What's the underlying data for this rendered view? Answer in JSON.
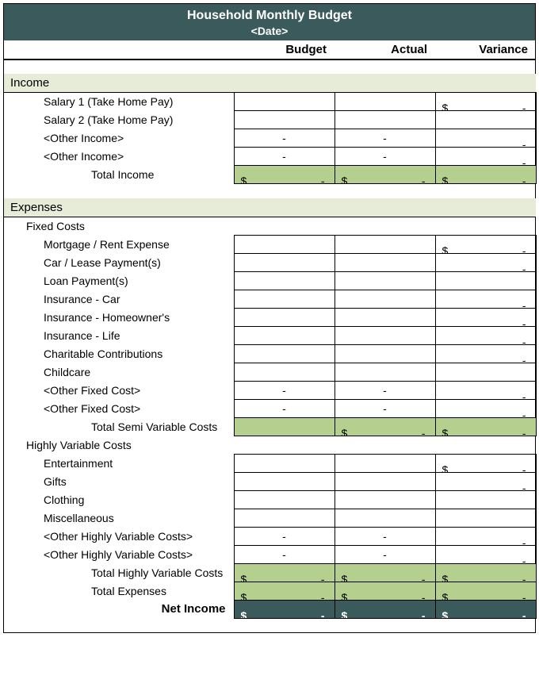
{
  "header": {
    "title": "Household Monthly Budget",
    "subtitle": "<Date>"
  },
  "columns": {
    "budget": "Budget",
    "actual": "Actual",
    "variance": "Variance"
  },
  "income": {
    "section": "Income",
    "rows": [
      {
        "label": "Salary 1 (Take Home Pay)",
        "budget": "",
        "actual": "",
        "variance_d": "$",
        "variance_h": "-"
      },
      {
        "label": "Salary 2 (Take Home Pay)",
        "budget": "",
        "actual": "",
        "variance": ""
      },
      {
        "label": "<Other Income>",
        "budget": "-",
        "actual": "-",
        "variance_h": "-"
      },
      {
        "label": "<Other Income>",
        "budget": "-",
        "actual": "-",
        "variance_h": "-"
      }
    ],
    "total": {
      "label": "Total Income",
      "d": "$",
      "h": "-"
    }
  },
  "expenses": {
    "section": "Expenses",
    "fixed": {
      "label": "Fixed Costs",
      "rows": [
        {
          "label": "Mortgage / Rent Expense",
          "variance_d": "$",
          "variance_h": "-"
        },
        {
          "label": "Car / Lease Payment(s)",
          "variance_h": "-"
        },
        {
          "label": "Loan Payment(s)"
        },
        {
          "label": "Insurance - Car",
          "variance_h": "-"
        },
        {
          "label": "Insurance - Homeowner's",
          "variance_h": "-"
        },
        {
          "label": "Insurance - Life",
          "variance_h": "-"
        },
        {
          "label": "Charitable Contributions",
          "variance_h": "-"
        },
        {
          "label": "Childcare"
        },
        {
          "label": "<Other Fixed Cost>",
          "budget": "-",
          "actual": "-",
          "variance_h": "-"
        },
        {
          "label": "<Other Fixed Cost>",
          "budget": "-",
          "actual": "-",
          "variance_h": "-"
        }
      ],
      "total": {
        "label": "Total Semi Variable Costs",
        "budget_d": "",
        "budget_h": "",
        "actual_d": "$",
        "actual_h": "-",
        "variance_d": "$",
        "variance_h": "-"
      }
    },
    "variable": {
      "label": "Highly Variable Costs",
      "rows": [
        {
          "label": "Entertainment",
          "variance_d": "$",
          "variance_h": "-"
        },
        {
          "label": "Gifts",
          "variance_h": "-"
        },
        {
          "label": "Clothing"
        },
        {
          "label": "Miscellaneous"
        },
        {
          "label": "<Other Highly Variable Costs>",
          "budget": "-",
          "actual": "-",
          "variance_h": "-"
        },
        {
          "label": "<Other Highly Variable Costs>",
          "budget": "-",
          "actual": "-",
          "variance_h": "-"
        }
      ],
      "total_hv": {
        "label": "Total Highly Variable Costs",
        "d": "$",
        "h": "-"
      },
      "total_exp": {
        "label": "Total Expenses",
        "d": "$",
        "h": "-"
      }
    }
  },
  "net": {
    "label": "Net Income",
    "d": "$",
    "h": "-"
  },
  "colors": {
    "header_bg": "#3b5a5c",
    "section_bg": "#e7ecd8",
    "total_bg": "#b5cf8f",
    "net_bg": "#3b5a5c"
  }
}
